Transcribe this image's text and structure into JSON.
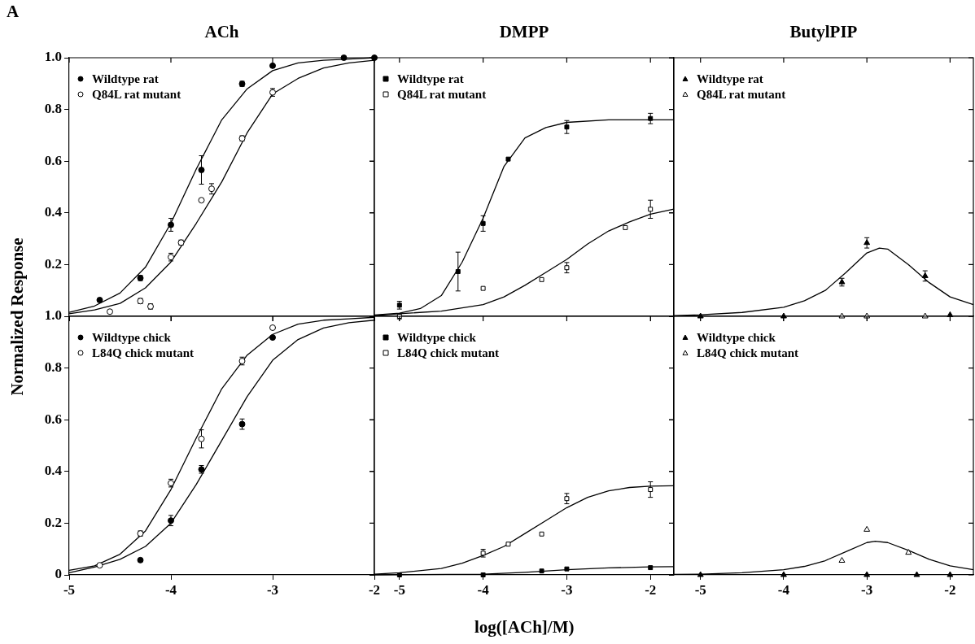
{
  "chart_data": [
    {
      "type": "scatter",
      "title": "ACh",
      "ylabel": "Normalized Response",
      "annotations": [
        "A"
      ],
      "legend": "top left",
      "tick_labels": "y",
      "xlim": [
        -5,
        -2
      ],
      "xticks": [
        -5,
        -4,
        -3,
        -2
      ],
      "ylim": [
        0,
        1
      ],
      "yticks": [
        {
          "value": 0,
          "label": null
        },
        0.2,
        0.4,
        0.6,
        0.8,
        "1.0"
      ],
      "series": [
        {
          "name": "Wildtype rat",
          "type": "scatter",
          "marker": "circle",
          "color": "#000000",
          "x": [
            -4.7,
            -4.3,
            -4,
            -3.7,
            -3.3,
            -3,
            -2.3,
            -2
          ],
          "values": [
            0.063,
            0.148,
            0.354,
            0.566,
            0.899,
            0.969,
            1.0,
            1.0
          ],
          "errors": [
            null,
            0.01,
            0.025,
            0.055,
            0.01,
            null,
            null,
            null
          ]
        },
        {
          "name": "Q84L rat mutant",
          "type": "scatter",
          "marker": "circle",
          "color": "#ffffff",
          "x": [
            -4.6,
            -4.3,
            -4.2,
            -4,
            -3.9,
            -3.7,
            -3.6,
            -3.3,
            -3
          ],
          "values": [
            0.018,
            0.059,
            0.038,
            0.229,
            0.285,
            0.449,
            0.493,
            0.688,
            0.866
          ],
          "errors": [
            null,
            0.01,
            0.01,
            0.015,
            0.01,
            null,
            0.02,
            0.01,
            0.015
          ]
        },
        {
          "type": "line",
          "marker": "none",
          "color": "#000000",
          "x": [
            -5,
            -4.75,
            -4.5,
            -4.25,
            -4,
            -3.75,
            -3.5,
            -3.25,
            -3,
            -2.75,
            -2.5,
            -2.25,
            -2
          ],
          "values": [
            0.015,
            0.04,
            0.09,
            0.19,
            0.36,
            0.57,
            0.76,
            0.88,
            0.95,
            0.98,
            0.99,
            0.995,
            1.0
          ]
        },
        {
          "type": "line",
          "marker": "none",
          "color": "#000000",
          "x": [
            -5,
            -4.75,
            -4.5,
            -4.25,
            -4,
            -3.75,
            -3.5,
            -3.25,
            -3,
            -2.75,
            -2.5,
            -2.25,
            -2
          ],
          "values": [
            0.01,
            0.025,
            0.05,
            0.11,
            0.21,
            0.36,
            0.52,
            0.71,
            0.86,
            0.92,
            0.96,
            0.98,
            0.99
          ]
        }
      ]
    },
    {
      "type": "scatter",
      "title": "DMPP",
      "legend": "top left",
      "tick_labels": false,
      "xlim": [
        -5.3,
        -1.72
      ],
      "xticks": [
        -5,
        -4,
        -3,
        -2
      ],
      "ylim": [
        0,
        1
      ],
      "yticks": [
        0,
        0.2,
        0.4,
        0.6,
        0.8,
        1
      ],
      "series": [
        {
          "name": "Wildtype rat",
          "type": "scatter",
          "marker": "square",
          "color": "#000000",
          "x": [
            -5,
            -4.3,
            -4,
            -3.7,
            -3,
            -2
          ],
          "values": [
            0.043,
            0.173,
            0.359,
            0.608,
            0.732,
            0.765
          ],
          "errors": [
            0.015,
            0.075,
            0.03,
            null,
            0.025,
            0.02
          ]
        },
        {
          "name": "Q84L rat mutant",
          "type": "scatter",
          "marker": "square",
          "color": "#ffffff",
          "x": [
            -5,
            -4,
            -3.3,
            -3,
            -2.3,
            -2
          ],
          "values": [
            0.0,
            0.108,
            0.142,
            0.188,
            0.343,
            0.414
          ],
          "errors": [
            0.01,
            null,
            null,
            0.02,
            null,
            0.035
          ]
        },
        {
          "type": "line",
          "marker": "none",
          "color": "#000000",
          "x": [
            -5.3,
            -5,
            -4.75,
            -4.5,
            -4.25,
            -4,
            -3.75,
            -3.5,
            -3.25,
            -3,
            -2.5,
            -2,
            -1.72
          ],
          "values": [
            0.005,
            0.012,
            0.03,
            0.08,
            0.21,
            0.38,
            0.58,
            0.69,
            0.73,
            0.75,
            0.76,
            0.76,
            0.76
          ]
        },
        {
          "type": "line",
          "marker": "none",
          "color": "#000000",
          "x": [
            -5.3,
            -5,
            -4.5,
            -4,
            -3.75,
            -3.5,
            -3.25,
            -3,
            -2.75,
            -2.5,
            -2.25,
            -2,
            -1.72
          ],
          "values": [
            0.003,
            0.01,
            0.02,
            0.045,
            0.075,
            0.12,
            0.17,
            0.22,
            0.28,
            0.33,
            0.365,
            0.395,
            0.415
          ]
        }
      ]
    },
    {
      "type": "scatter",
      "title": "ButylPIP",
      "legend": "top left",
      "tick_labels": false,
      "xlim": [
        -5.32,
        -1.72
      ],
      "xticks": [
        -5,
        -4,
        -3,
        -2
      ],
      "ylim": [
        0,
        1
      ],
      "yticks": [
        0,
        0.2,
        0.4,
        0.6,
        0.8,
        1
      ],
      "series": [
        {
          "name": "Wildtype rat",
          "type": "scatter",
          "marker": "triangle",
          "color": "#000000",
          "x": [
            -5,
            -4,
            -3.3,
            -3,
            -2.3,
            -2
          ],
          "values": [
            0,
            0,
            0.132,
            0.284,
            0.156,
            0.005
          ],
          "errors": [
            null,
            null,
            0.015,
            0.02,
            0.02,
            null
          ]
        },
        {
          "name": "Q84L rat mutant",
          "type": "scatter",
          "marker": "triangle",
          "color": "#ffffff",
          "x": [
            -3.3,
            -3,
            -2.3
          ],
          "values": [
            0,
            0,
            0
          ]
        },
        {
          "type": "line",
          "marker": "none",
          "color": "#000000",
          "x": [
            -5.32,
            -5,
            -4.5,
            -4,
            -3.75,
            -3.5,
            -3.25,
            -3,
            -2.85,
            -2.75,
            -2.5,
            -2.25,
            -2,
            -1.72
          ],
          "values": [
            0.003,
            0.006,
            0.015,
            0.035,
            0.06,
            0.1,
            0.17,
            0.245,
            0.264,
            0.26,
            0.2,
            0.13,
            0.075,
            0.045
          ]
        }
      ]
    },
    {
      "type": "scatter",
      "legend": "top left",
      "xlim": [
        -5,
        -2
      ],
      "xticks": [
        -5,
        -4,
        -3,
        -2
      ],
      "ylim": [
        0,
        1
      ],
      "yticks": [
        0,
        0.2,
        0.4,
        0.6,
        0.8,
        "1.0"
      ],
      "series": [
        {
          "name": "Wildtype chick",
          "type": "scatter",
          "marker": "circle",
          "color": "#000000",
          "x": [
            -4.3,
            -4,
            -3.7,
            -3.3,
            -3
          ],
          "values": [
            0.057,
            0.21,
            0.408,
            0.583,
            0.918
          ],
          "errors": [
            null,
            0.02,
            0.015,
            0.02,
            null
          ]
        },
        {
          "name": "L84Q chick mutant",
          "type": "scatter",
          "marker": "circle",
          "color": "#ffffff",
          "x": [
            -4.7,
            -4.3,
            -4,
            -3.7,
            -3.3,
            -3
          ],
          "values": [
            0.037,
            0.16,
            0.355,
            0.526,
            0.827,
            0.956
          ],
          "errors": [
            null,
            0.01,
            0.015,
            0.035,
            0.015,
            null
          ]
        },
        {
          "type": "line",
          "marker": "none",
          "color": "#000000",
          "x": [
            -5,
            -4.75,
            -4.5,
            -4.25,
            -4,
            -3.75,
            -3.5,
            -3.25,
            -3,
            -2.75,
            -2.5,
            -2.25,
            -2
          ],
          "values": [
            0.018,
            0.035,
            0.08,
            0.17,
            0.33,
            0.53,
            0.72,
            0.85,
            0.93,
            0.97,
            0.985,
            0.99,
            0.996
          ]
        },
        {
          "type": "line",
          "marker": "none",
          "color": "#000000",
          "x": [
            -5,
            -4.75,
            -4.5,
            -4.25,
            -4,
            -3.75,
            -3.5,
            -3.25,
            -3,
            -2.75,
            -2.5,
            -2.25,
            -2
          ],
          "values": [
            0.008,
            0.03,
            0.06,
            0.11,
            0.2,
            0.35,
            0.52,
            0.69,
            0.83,
            0.91,
            0.955,
            0.975,
            0.985
          ]
        }
      ]
    },
    {
      "type": "scatter",
      "xlabel": "log([ACh]/M)",
      "legend": "top left",
      "tick_labels": "x",
      "xlim": [
        -5.3,
        -1.72
      ],
      "xticks": [
        -5,
        -4,
        -3,
        -2
      ],
      "ylim": [
        0,
        1
      ],
      "yticks": [
        0,
        0.2,
        0.4,
        0.6,
        0.8,
        1
      ],
      "series": [
        {
          "name": "Wildtype chick",
          "type": "scatter",
          "marker": "square",
          "color": "#000000",
          "x": [
            -5,
            -4,
            -3.3,
            -3,
            -2
          ],
          "values": [
            0.0,
            0.0,
            0.015,
            0.023,
            0.028
          ]
        },
        {
          "name": "L84Q chick mutant",
          "type": "scatter",
          "marker": "square",
          "color": "#ffffff",
          "x": [
            -4,
            -3.7,
            -3.3,
            -3,
            -2
          ],
          "values": [
            0.084,
            0.119,
            0.158,
            0.295,
            0.33
          ],
          "errors": [
            0.015,
            null,
            null,
            0.02,
            0.03
          ]
        },
        {
          "type": "line",
          "marker": "none",
          "color": "#000000",
          "x": [
            -5.3,
            -5,
            -4.5,
            -4.25,
            -4,
            -3.75,
            -3.5,
            -3.25,
            -3,
            -2.75,
            -2.5,
            -2.25,
            -2,
            -1.72
          ],
          "values": [
            0.003,
            0.008,
            0.025,
            0.045,
            0.075,
            0.11,
            0.16,
            0.21,
            0.26,
            0.3,
            0.325,
            0.338,
            0.343,
            0.345
          ]
        },
        {
          "type": "line",
          "marker": "none",
          "color": "#000000",
          "x": [
            -5.3,
            -4,
            -3.5,
            -3,
            -2.5,
            -2,
            -1.72
          ],
          "values": [
            0,
            0.003,
            0.01,
            0.02,
            0.027,
            0.031,
            0.032
          ]
        }
      ]
    },
    {
      "type": "scatter",
      "legend": "top left",
      "tick_labels": "x",
      "xlim": [
        -5.32,
        -1.72
      ],
      "xticks": [
        -5,
        -4,
        -3,
        -2
      ],
      "ylim": [
        0,
        1
      ],
      "yticks": [
        0,
        0.2,
        0.4,
        0.6,
        0.8,
        1
      ],
      "series": [
        {
          "name": "Wildtype chick",
          "type": "scatter",
          "marker": "triangle",
          "color": "#000000",
          "x": [
            -5,
            -4,
            -3,
            -2.4,
            -2
          ],
          "values": [
            0,
            0,
            0,
            0,
            0
          ]
        },
        {
          "name": "L84Q chick mutant",
          "type": "scatter",
          "marker": "triangle",
          "color": "#ffffff",
          "x": [
            -3.3,
            -3,
            -2.5
          ],
          "values": [
            0.055,
            0.175,
            0.086
          ]
        },
        {
          "type": "line",
          "marker": "none",
          "color": "#000000",
          "x": [
            -5.32,
            -5,
            -4.5,
            -4,
            -3.75,
            -3.5,
            -3.25,
            -3,
            -2.9,
            -2.75,
            -2.5,
            -2.25,
            -2,
            -1.72
          ],
          "values": [
            0.002,
            0.003,
            0.008,
            0.02,
            0.033,
            0.055,
            0.09,
            0.125,
            0.13,
            0.125,
            0.095,
            0.06,
            0.035,
            0.02
          ]
        }
      ]
    }
  ]
}
